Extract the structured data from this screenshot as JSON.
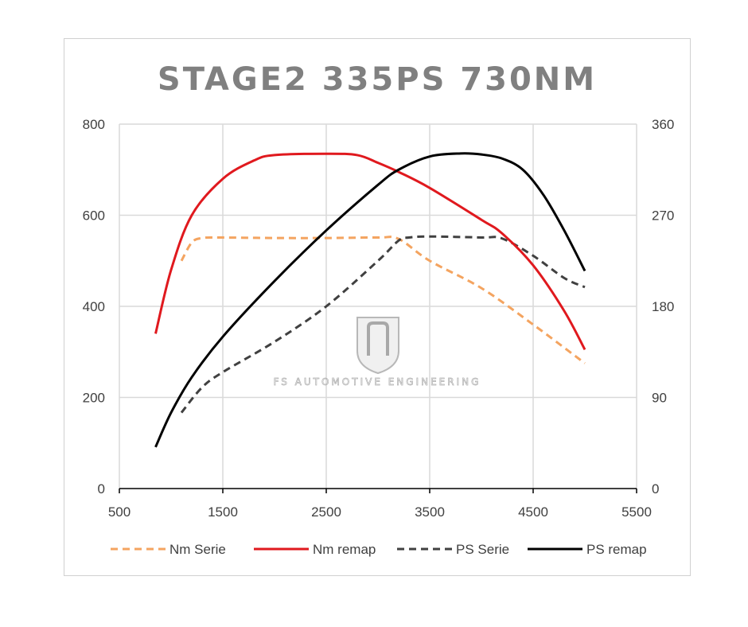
{
  "chart_data": {
    "type": "line",
    "title": "STAGE2 335PS 730NM",
    "xlim": [
      500,
      5500
    ],
    "x_ticks": [
      "500",
      "1500",
      "2500",
      "3500",
      "4500",
      "5500"
    ],
    "y_left_lim": [
      0,
      800
    ],
    "y_left_ticks": [
      "0",
      "200",
      "400",
      "600",
      "800"
    ],
    "y_right_lim": [
      0,
      360
    ],
    "y_right_ticks": [
      "0",
      "90",
      "180",
      "270",
      "360"
    ],
    "grid": true,
    "legend_position": "bottom",
    "series": [
      {
        "name": "Nm Serie",
        "axis": "left",
        "color": "#F4A460",
        "dash": "dashed",
        "points": [
          [
            1100,
            500
          ],
          [
            1200,
            540
          ],
          [
            1300,
            550
          ],
          [
            1500,
            551
          ],
          [
            2000,
            550
          ],
          [
            2500,
            550
          ],
          [
            3000,
            551
          ],
          [
            3200,
            548
          ],
          [
            3500,
            500
          ],
          [
            4000,
            440
          ],
          [
            4500,
            360
          ],
          [
            5000,
            275
          ]
        ]
      },
      {
        "name": "Nm remap",
        "axis": "left",
        "color": "#E0191E",
        "dash": "solid",
        "points": [
          [
            850,
            340
          ],
          [
            1000,
            480
          ],
          [
            1200,
            600
          ],
          [
            1500,
            680
          ],
          [
            1800,
            720
          ],
          [
            2000,
            732
          ],
          [
            2500,
            735
          ],
          [
            2800,
            732
          ],
          [
            3000,
            715
          ],
          [
            3200,
            695
          ],
          [
            3500,
            660
          ],
          [
            4000,
            590
          ],
          [
            4200,
            560
          ],
          [
            4500,
            490
          ],
          [
            4800,
            390
          ],
          [
            5000,
            305
          ]
        ]
      },
      {
        "name": "PS Serie",
        "axis": "right",
        "color": "#404040",
        "dash": "dashed",
        "points": [
          [
            1100,
            75
          ],
          [
            1300,
            100
          ],
          [
            1500,
            115
          ],
          [
            2000,
            145
          ],
          [
            2500,
            180
          ],
          [
            3000,
            225
          ],
          [
            3200,
            245
          ],
          [
            3300,
            248
          ],
          [
            3500,
            249
          ],
          [
            4000,
            248
          ],
          [
            4200,
            247
          ],
          [
            4500,
            230
          ],
          [
            4800,
            208
          ],
          [
            5000,
            199
          ]
        ]
      },
      {
        "name": "PS remap",
        "axis": "right",
        "color": "#000000",
        "dash": "solid",
        "points": [
          [
            850,
            41
          ],
          [
            1000,
            75
          ],
          [
            1200,
            110
          ],
          [
            1500,
            150
          ],
          [
            2000,
            205
          ],
          [
            2500,
            255
          ],
          [
            3000,
            300
          ],
          [
            3200,
            315
          ],
          [
            3500,
            328
          ],
          [
            3800,
            331
          ],
          [
            4000,
            330
          ],
          [
            4200,
            326
          ],
          [
            4400,
            315
          ],
          [
            4600,
            290
          ],
          [
            4800,
            255
          ],
          [
            5000,
            215
          ]
        ]
      }
    ]
  },
  "watermark": {
    "text": "FS AUTOMOTIVE ENGINEERING",
    "logo_icon": "fs-shield-logo-icon"
  }
}
